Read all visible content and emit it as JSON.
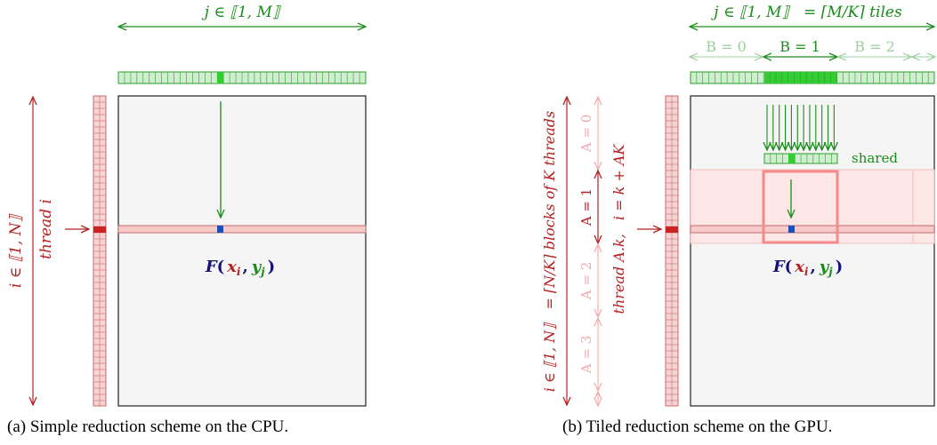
{
  "colors": {
    "green": "#1a8c1a",
    "green_light": "#cfeecf",
    "green_cell_line": "#2e9e2e",
    "green_active": "#33cc33",
    "red": "#b22222",
    "red_light": "#f7d4d4",
    "red_faint": "#f3a9a9",
    "red_cell_line": "#c96b6b",
    "red_active": "#cc2222",
    "pink_tile": "#f58a8a",
    "pink_band": "#fde6e6",
    "panel": "#f5f5f5",
    "blue": "#1d4fb8",
    "navy": "#12127a"
  },
  "left": {
    "j_label": "j ∈ ⟦1, M⟧",
    "i_label": "i ∈ ⟦1, N⟧",
    "thread_label": "thread i",
    "formula": {
      "F": "F",
      "x": "x",
      "i": "i",
      "y": "y",
      "j": "j"
    },
    "caption": "(a) Simple reduction scheme on the CPU."
  },
  "right": {
    "j_label": "j ∈ ⟦1, M⟧   = ⌈M/K⌉ tiles",
    "blocks": [
      "B = 0",
      "B = 1",
      "B = 2"
    ],
    "shared_label": "shared",
    "i_label": "i ∈ ⟦1, N⟧   = ⌈N/K⌉ blocks of K threads",
    "a_labels": [
      "A = 0",
      "A = 1",
      "A = 2",
      "A = 3"
    ],
    "thread_label": "thread A.k,   i = k + AK",
    "formula": {
      "F": "F",
      "x": "x",
      "i": "i",
      "y": "y",
      "j": "j"
    },
    "caption": "(b) Tiled reduction scheme on the GPU."
  }
}
